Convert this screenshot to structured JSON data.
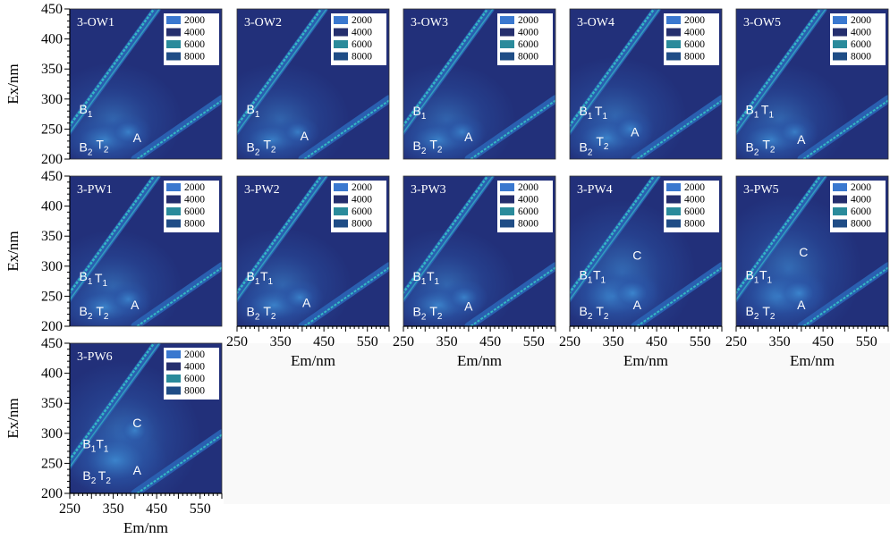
{
  "colors": {
    "background": "#22307a",
    "mid": "#2b56a8",
    "high": "#3f8fd6",
    "diag": "#2a5fb0",
    "diag_core": "#34b8c4",
    "legend": [
      "#3a78cf",
      "#252f6e",
      "#2a8b9b",
      "#1f4d86"
    ]
  },
  "chart_data": [
    {
      "type": "heatmap",
      "panel": "3-OW1",
      "xlabel": "",
      "ylabel": "Ex/nm",
      "xlim": [
        250,
        600
      ],
      "ylim": [
        200,
        450
      ],
      "xticks": [],
      "yticks": [
        200,
        250,
        300,
        350,
        400,
        450
      ],
      "legend": [
        "2000",
        "4000",
        "6000",
        "8000"
      ],
      "peaks": [
        {
          "label": "B",
          "sub": "1",
          "em": 287,
          "ex": 276
        },
        {
          "label": "B",
          "sub": "2",
          "em": 287,
          "ex": 213
        },
        {
          "label": "T",
          "sub": "2",
          "em": 325,
          "ex": 217
        },
        {
          "label": "A",
          "em": 405,
          "ex": 228
        }
      ],
      "blobs": [
        {
          "em": 350,
          "ex": 265,
          "rem": 160,
          "rex": 95,
          "level": 0.35
        },
        {
          "em": 330,
          "ex": 232,
          "rem": 105,
          "rex": 42,
          "level": 0.6
        },
        {
          "em": 385,
          "ex": 245,
          "rem": 55,
          "rex": 30,
          "level": 0.55
        }
      ]
    },
    {
      "type": "heatmap",
      "panel": "3-OW2",
      "xlabel": "",
      "ylabel": "",
      "xlim": [
        250,
        600
      ],
      "ylim": [
        200,
        450
      ],
      "xticks": [],
      "yticks": [],
      "legend": [
        "2000",
        "4000",
        "6000",
        "8000"
      ],
      "peaks": [
        {
          "label": "B",
          "sub": "1",
          "em": 287,
          "ex": 276
        },
        {
          "label": "B",
          "sub": "2",
          "em": 287,
          "ex": 213
        },
        {
          "label": "T",
          "sub": "2",
          "em": 325,
          "ex": 217
        },
        {
          "label": "A",
          "em": 405,
          "ex": 231
        }
      ],
      "blobs": [
        {
          "em": 350,
          "ex": 265,
          "rem": 160,
          "rex": 95,
          "level": 0.32
        },
        {
          "em": 330,
          "ex": 232,
          "rem": 100,
          "rex": 40,
          "level": 0.55
        },
        {
          "em": 390,
          "ex": 245,
          "rem": 50,
          "rex": 28,
          "level": 0.5
        }
      ]
    },
    {
      "type": "heatmap",
      "panel": "3-OW3",
      "xlabel": "",
      "ylabel": "",
      "xlim": [
        250,
        600
      ],
      "ylim": [
        200,
        450
      ],
      "xticks": [],
      "yticks": [],
      "legend": [
        "2000",
        "4000",
        "6000",
        "8000"
      ],
      "peaks": [
        {
          "label": "B",
          "sub": "1",
          "em": 287,
          "ex": 273
        },
        {
          "label": "B",
          "sub": "2",
          "em": 287,
          "ex": 215
        },
        {
          "label": "T",
          "sub": "2",
          "em": 325,
          "ex": 217
        },
        {
          "label": "A",
          "em": 400,
          "ex": 230
        }
      ],
      "blobs": [
        {
          "em": 350,
          "ex": 265,
          "rem": 160,
          "rex": 95,
          "level": 0.33
        },
        {
          "em": 330,
          "ex": 232,
          "rem": 105,
          "rex": 42,
          "level": 0.58
        },
        {
          "em": 385,
          "ex": 245,
          "rem": 55,
          "rex": 30,
          "level": 0.52
        }
      ]
    },
    {
      "type": "heatmap",
      "panel": "3-OW4",
      "xlabel": "",
      "ylabel": "",
      "xlim": [
        250,
        600
      ],
      "ylim": [
        200,
        450
      ],
      "xticks": [],
      "yticks": [],
      "legend": [
        "2000",
        "4000",
        "6000",
        "8000"
      ],
      "peaks": [
        {
          "label": "B",
          "sub": "1",
          "em": 287,
          "ex": 273
        },
        {
          "label": "T",
          "sub": "1",
          "em": 322,
          "ex": 273
        },
        {
          "label": "B",
          "sub": "2",
          "em": 287,
          "ex": 213
        },
        {
          "label": "T",
          "sub": "2",
          "em": 325,
          "ex": 222
        },
        {
          "label": "A",
          "em": 400,
          "ex": 238
        }
      ],
      "blobs": [
        {
          "em": 355,
          "ex": 270,
          "rem": 165,
          "rex": 100,
          "level": 0.38
        },
        {
          "em": 335,
          "ex": 235,
          "rem": 105,
          "rex": 45,
          "level": 0.6
        },
        {
          "em": 390,
          "ex": 250,
          "rem": 55,
          "rex": 32,
          "level": 0.55
        }
      ]
    },
    {
      "type": "heatmap",
      "panel": "3-OW5",
      "xlabel": "",
      "ylabel": "",
      "xlim": [
        250,
        600
      ],
      "ylim": [
        200,
        450
      ],
      "xticks": [],
      "yticks": [],
      "legend": [
        "2000",
        "4000",
        "6000",
        "8000"
      ],
      "peaks": [
        {
          "label": "B",
          "sub": "1",
          "em": 287,
          "ex": 275
        },
        {
          "label": "T",
          "sub": "1",
          "em": 322,
          "ex": 275
        },
        {
          "label": "B",
          "sub": "2",
          "em": 287,
          "ex": 213
        },
        {
          "label": "T",
          "sub": "2",
          "em": 325,
          "ex": 217
        },
        {
          "label": "A",
          "em": 400,
          "ex": 225
        }
      ],
      "blobs": [
        {
          "em": 350,
          "ex": 265,
          "rem": 160,
          "rex": 95,
          "level": 0.35
        },
        {
          "em": 330,
          "ex": 232,
          "rem": 105,
          "rex": 42,
          "level": 0.58
        },
        {
          "em": 385,
          "ex": 245,
          "rem": 55,
          "rex": 30,
          "level": 0.5
        }
      ]
    },
    {
      "type": "heatmap",
      "panel": "3-PW1",
      "xlabel": "",
      "ylabel": "Ex/nm",
      "xlim": [
        250,
        600
      ],
      "ylim": [
        200,
        450
      ],
      "xticks": [],
      "yticks": [
        200,
        250,
        300,
        350,
        400,
        450
      ],
      "legend": [
        "2000",
        "4000",
        "6000",
        "8000"
      ],
      "peaks": [
        {
          "label": "B",
          "sub": "1",
          "em": 287,
          "ex": 276
        },
        {
          "label": "T",
          "sub": "1",
          "em": 322,
          "ex": 273
        },
        {
          "label": "B",
          "sub": "2",
          "em": 287,
          "ex": 218
        },
        {
          "label": "T",
          "sub": "2",
          "em": 325,
          "ex": 218
        },
        {
          "label": "A",
          "em": 400,
          "ex": 228
        }
      ],
      "blobs": [
        {
          "em": 350,
          "ex": 265,
          "rem": 160,
          "rex": 95,
          "level": 0.35
        },
        {
          "em": 330,
          "ex": 232,
          "rem": 105,
          "rex": 42,
          "level": 0.6
        },
        {
          "em": 385,
          "ex": 245,
          "rem": 55,
          "rex": 30,
          "level": 0.55
        }
      ]
    },
    {
      "type": "heatmap",
      "panel": "3-PW2",
      "xlabel": "Em/nm",
      "ylabel": "",
      "xlim": [
        250,
        600
      ],
      "ylim": [
        200,
        450
      ],
      "xticks": [
        250,
        350,
        450,
        550
      ],
      "yticks": [],
      "legend": [
        "2000",
        "4000",
        "6000",
        "8000"
      ],
      "peaks": [
        {
          "label": "B",
          "sub": "1",
          "em": 287,
          "ex": 276
        },
        {
          "label": "T",
          "sub": "1",
          "em": 318,
          "ex": 276
        },
        {
          "label": "B",
          "sub": "2",
          "em": 287,
          "ex": 217
        },
        {
          "label": "T",
          "sub": "2",
          "em": 325,
          "ex": 218
        },
        {
          "label": "A",
          "em": 410,
          "ex": 232
        }
      ],
      "blobs": [
        {
          "em": 355,
          "ex": 268,
          "rem": 160,
          "rex": 95,
          "level": 0.36
        },
        {
          "em": 335,
          "ex": 235,
          "rem": 105,
          "rex": 42,
          "level": 0.58
        },
        {
          "em": 395,
          "ex": 248,
          "rem": 55,
          "rex": 30,
          "level": 0.55
        }
      ]
    },
    {
      "type": "heatmap",
      "panel": "3-PW3",
      "xlabel": "Em/nm",
      "ylabel": "",
      "xlim": [
        250,
        600
      ],
      "ylim": [
        200,
        450
      ],
      "xticks": [
        250,
        350,
        450,
        550
      ],
      "yticks": [],
      "legend": [
        "2000",
        "4000",
        "6000",
        "8000"
      ],
      "peaks": [
        {
          "label": "B",
          "sub": "1",
          "em": 287,
          "ex": 276
        },
        {
          "label": "T",
          "sub": "1",
          "em": 318,
          "ex": 276
        },
        {
          "label": "B",
          "sub": "2",
          "em": 287,
          "ex": 217
        },
        {
          "label": "T",
          "sub": "2",
          "em": 325,
          "ex": 218
        },
        {
          "label": "A",
          "em": 400,
          "ex": 226
        }
      ],
      "blobs": [
        {
          "em": 350,
          "ex": 268,
          "rem": 160,
          "rex": 95,
          "level": 0.36
        },
        {
          "em": 330,
          "ex": 235,
          "rem": 105,
          "rex": 42,
          "level": 0.6
        },
        {
          "em": 390,
          "ex": 248,
          "rem": 55,
          "rex": 30,
          "level": 0.55
        }
      ]
    },
    {
      "type": "heatmap",
      "panel": "3-PW4",
      "xlabel": "Em/nm",
      "ylabel": "",
      "xlim": [
        250,
        600
      ],
      "ylim": [
        200,
        450
      ],
      "xticks": [
        250,
        350,
        450,
        550
      ],
      "yticks": [],
      "legend": [
        "2000",
        "4000",
        "6000",
        "8000"
      ],
      "peaks": [
        {
          "label": "C",
          "em": 405,
          "ex": 311
        },
        {
          "label": "B",
          "sub": "1",
          "em": 287,
          "ex": 278
        },
        {
          "label": "T",
          "sub": "1",
          "em": 318,
          "ex": 278
        },
        {
          "label": "B",
          "sub": "2",
          "em": 287,
          "ex": 218
        },
        {
          "label": "T",
          "sub": "2",
          "em": 325,
          "ex": 218
        },
        {
          "label": "A",
          "em": 405,
          "ex": 228
        }
      ],
      "blobs": [
        {
          "em": 370,
          "ex": 290,
          "rem": 170,
          "rex": 120,
          "level": 0.42
        },
        {
          "em": 350,
          "ex": 250,
          "rem": 120,
          "rex": 55,
          "level": 0.62
        },
        {
          "em": 395,
          "ex": 255,
          "rem": 60,
          "rex": 35,
          "level": 0.58
        }
      ]
    },
    {
      "type": "heatmap",
      "panel": "3-PW5",
      "xlabel": "Em/nm",
      "ylabel": "",
      "xlim": [
        250,
        600
      ],
      "ylim": [
        200,
        450
      ],
      "xticks": [
        250,
        350,
        450,
        550
      ],
      "yticks": [],
      "legend": [
        "2000",
        "4000",
        "6000",
        "8000"
      ],
      "peaks": [
        {
          "label": "C",
          "em": 405,
          "ex": 316
        },
        {
          "label": "B",
          "sub": "1",
          "em": 287,
          "ex": 278
        },
        {
          "label": "T",
          "sub": "1",
          "em": 318,
          "ex": 278
        },
        {
          "label": "B",
          "sub": "2",
          "em": 287,
          "ex": 218
        },
        {
          "label": "T",
          "sub": "2",
          "em": 325,
          "ex": 218
        },
        {
          "label": "A",
          "em": 400,
          "ex": 228
        }
      ],
      "blobs": [
        {
          "em": 370,
          "ex": 295,
          "rem": 170,
          "rex": 125,
          "level": 0.44
        },
        {
          "em": 350,
          "ex": 250,
          "rem": 120,
          "rex": 55,
          "level": 0.62
        },
        {
          "em": 395,
          "ex": 255,
          "rem": 60,
          "rex": 35,
          "level": 0.58
        }
      ]
    },
    {
      "type": "heatmap",
      "panel": "3-PW6",
      "xlabel": "Em/nm",
      "ylabel": "Ex/nm",
      "xlim": [
        250,
        600
      ],
      "ylim": [
        200,
        450
      ],
      "xticks": [
        250,
        350,
        450,
        550
      ],
      "yticks": [
        200,
        250,
        300,
        350,
        400,
        450
      ],
      "legend": [
        "2000",
        "4000",
        "6000",
        "8000"
      ],
      "peaks": [
        {
          "label": "C",
          "em": 405,
          "ex": 310
        },
        {
          "label": "B",
          "sub": "1",
          "em": 295,
          "ex": 275
        },
        {
          "label": "T",
          "sub": "1",
          "em": 325,
          "ex": 275
        },
        {
          "label": "B",
          "sub": "2",
          "em": 295,
          "ex": 222
        },
        {
          "label": "T",
          "sub": "2",
          "em": 330,
          "ex": 222
        },
        {
          "label": "A",
          "em": 405,
          "ex": 231
        }
      ],
      "blobs": [
        {
          "em": 375,
          "ex": 295,
          "rem": 175,
          "rex": 125,
          "level": 0.45
        },
        {
          "em": 355,
          "ex": 255,
          "rem": 120,
          "rex": 58,
          "level": 0.62
        },
        {
          "em": 400,
          "ex": 305,
          "rem": 45,
          "rex": 30,
          "level": 0.5
        }
      ]
    }
  ]
}
